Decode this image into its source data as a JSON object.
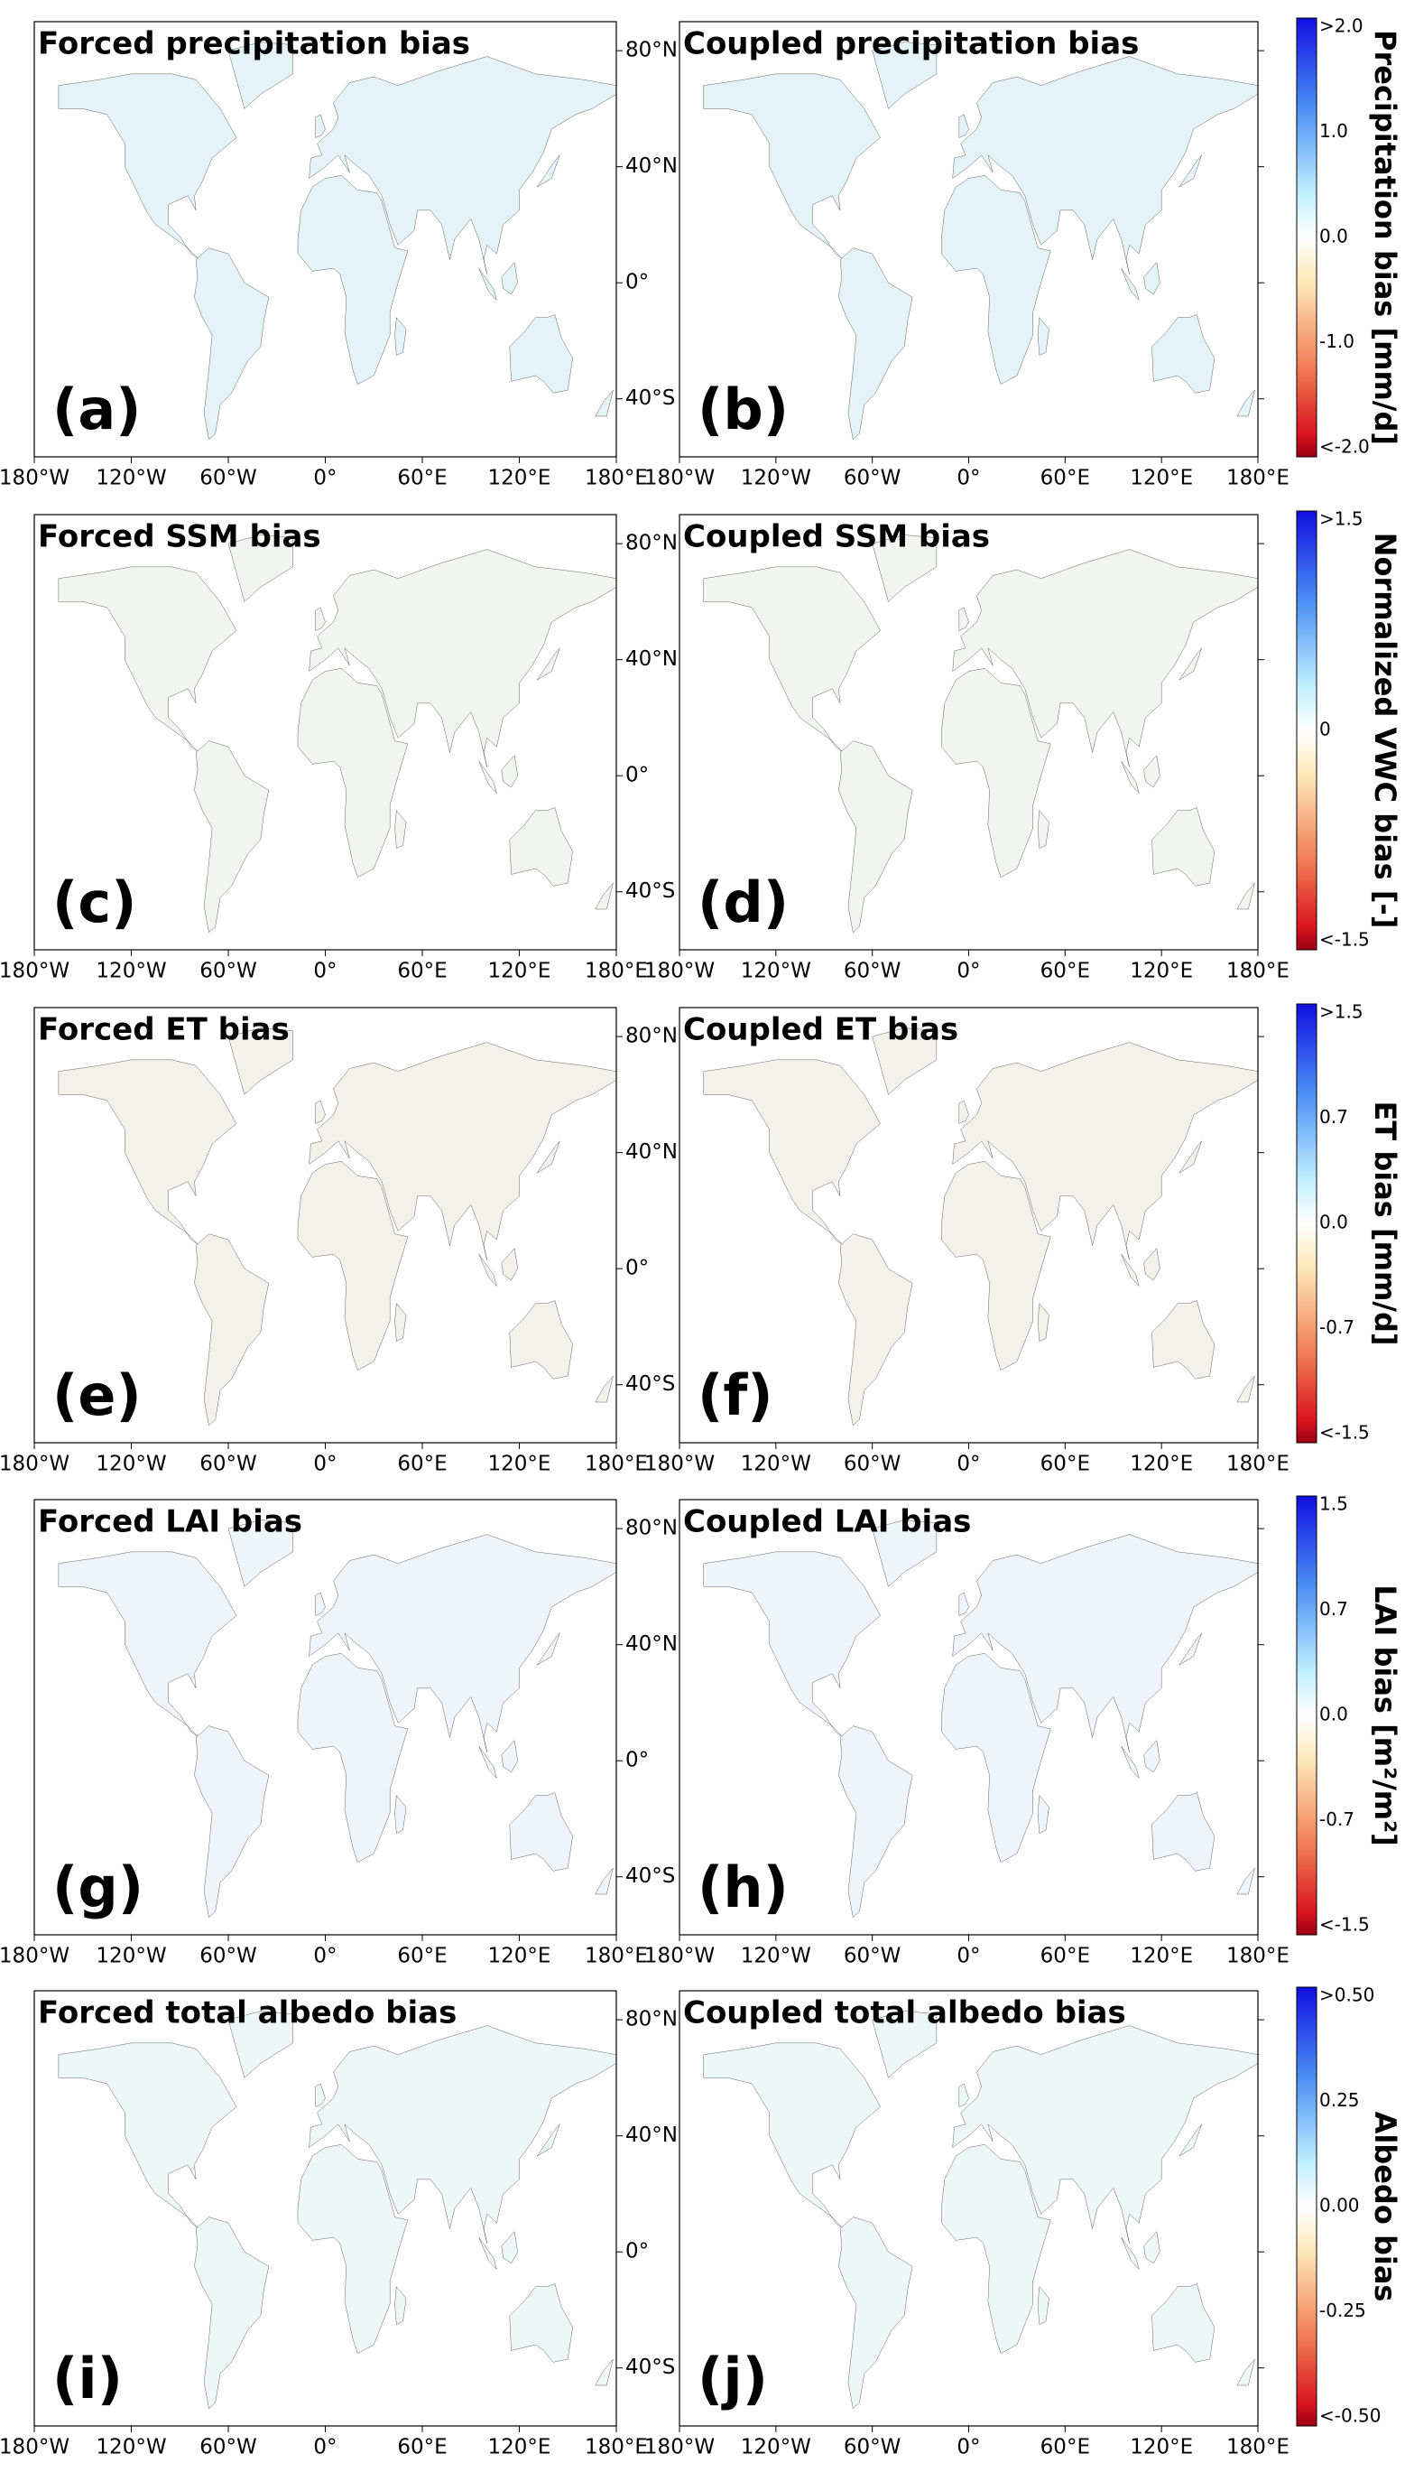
{
  "panels": [
    {
      "title": "Forced precipitation bias",
      "letter": "(a)"
    },
    {
      "title": "Coupled precipitation bias",
      "letter": "(b)"
    },
    {
      "title": "Forced SSM bias",
      "letter": "(c)"
    },
    {
      "title": "Coupled SSM bias",
      "letter": "(d)"
    },
    {
      "title": "Forced ET bias",
      "letter": "(e)"
    },
    {
      "title": "Coupled ET bias",
      "letter": "(f)"
    },
    {
      "title": "Forced LAI bias",
      "letter": "(g)"
    },
    {
      "title": "Coupled LAI bias",
      "letter": "(h)"
    },
    {
      "title": "Forced total albedo bias",
      "letter": "(i)"
    },
    {
      "title": "Coupled total albedo bias",
      "letter": "(j)"
    }
  ],
  "lon_ticks": [
    "180°W",
    "120°W",
    "60°W",
    "0°",
    "60°E",
    "120°E",
    "180°E"
  ],
  "lat_ticks": [
    "80°N",
    "40°N",
    "0°",
    "40°S"
  ],
  "colorbars": [
    {
      "label": "Precipitation bias [mm/d]",
      "ticks": [
        ">2.0",
        "1.0",
        "0.0",
        "-1.0",
        "<-2.0"
      ]
    },
    {
      "label": "Normalized VWC bias [-]",
      "ticks": [
        ">1.5",
        "0",
        "<-1.5"
      ]
    },
    {
      "label": "ET bias [mm/d]",
      "ticks": [
        ">1.5",
        "0.7",
        "0.0",
        "-0.7",
        "<-1.5"
      ]
    },
    {
      "label": "LAI bias [m²/m²]",
      "ticks": [
        "1.5",
        "0.7",
        "0.0",
        "-0.7",
        "<-1.5"
      ]
    },
    {
      "label": "Albedo bias",
      "ticks": [
        ">0.50",
        "0.25",
        "0.00",
        "-0.25",
        "<-0.50"
      ]
    }
  ]
}
